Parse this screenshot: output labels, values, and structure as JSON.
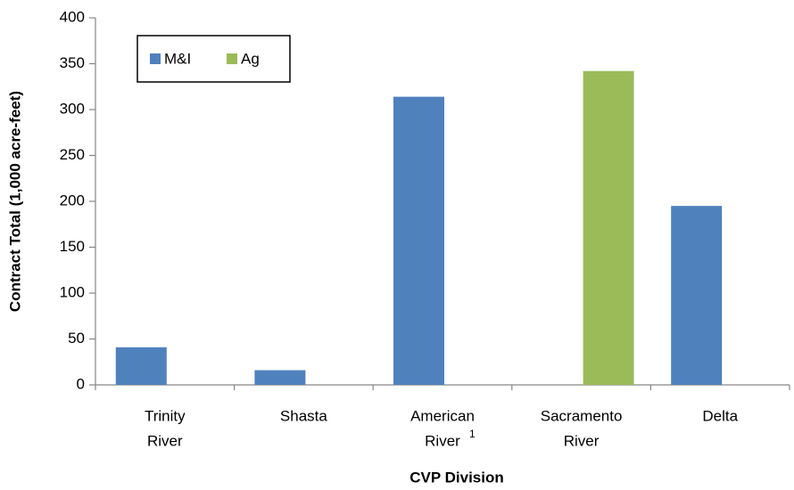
{
  "chart_data": {
    "type": "bar",
    "x_label": "CVP Division",
    "y_label": "Contract Total (1,000 acre-feet)",
    "categories": [
      [
        "Trinity",
        "River"
      ],
      [
        "Shasta"
      ],
      [
        "American",
        "River"
      ],
      [
        "Sacramento",
        "River"
      ],
      [
        "Delta"
      ]
    ],
    "category_superscripts": [
      null,
      null,
      "1",
      null,
      null
    ],
    "series": [
      {
        "name": "M&I",
        "color": "#4f81bd",
        "values": [
          41,
          16,
          314,
          null,
          195
        ]
      },
      {
        "name": "Ag",
        "color": "#9bbb59",
        "values": [
          null,
          null,
          null,
          342,
          null
        ]
      }
    ],
    "ylim": [
      0,
      400
    ],
    "yticks": [
      0,
      50,
      100,
      150,
      200,
      250,
      300,
      350,
      400
    ],
    "grid": false,
    "legend": "upper left"
  }
}
